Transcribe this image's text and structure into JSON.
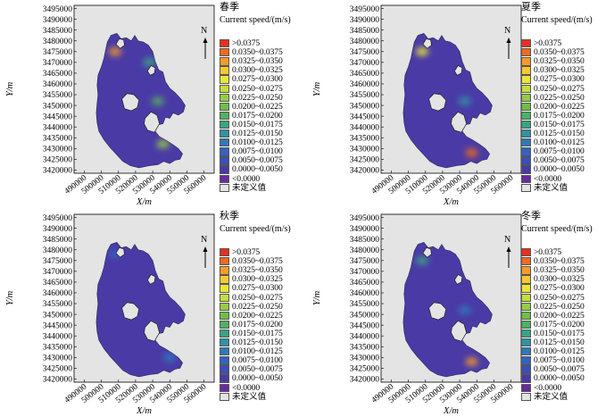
{
  "legend": {
    "title": "Current speed/(m/s)",
    "entries": [
      {
        "label": ">0.0375",
        "color": "#e8301e"
      },
      {
        "label": "0.0350~0.0375",
        "color": "#f06a22"
      },
      {
        "label": "0.0325~0.0350",
        "color": "#f59b2a"
      },
      {
        "label": "0.0300~0.0325",
        "color": "#f7c832"
      },
      {
        "label": "0.0275~0.0300",
        "color": "#e9e63a"
      },
      {
        "label": "0.0250~0.0275",
        "color": "#c4de3c"
      },
      {
        "label": "0.0225~0.0250",
        "color": "#96cc42"
      },
      {
        "label": "0.0200~0.0225",
        "color": "#6ebe48"
      },
      {
        "label": "0.0175~0.0200",
        "color": "#4fb15f"
      },
      {
        "label": "0.0150~0.0175",
        "color": "#3aa482"
      },
      {
        "label": "0.0125~0.0150",
        "color": "#2f93a3"
      },
      {
        "label": "0.0100~0.0125",
        "color": "#2f79ba"
      },
      {
        "label": "0.0075~0.0100",
        "color": "#3463bf"
      },
      {
        "label": "0.0050~0.0075",
        "color": "#3b4fb5"
      },
      {
        "label": "0.0000~0.0050",
        "color": "#4a3aa6"
      },
      {
        "label": "<0.0000",
        "color": "#6a2aa0"
      },
      {
        "label": "未定义值",
        "color": "#e4e4e4"
      }
    ]
  },
  "axes": {
    "ylabel": "Y/m",
    "xlabel": "X/m",
    "yticks": [
      "3495000",
      "3490000",
      "3485000",
      "3480000",
      "3475000",
      "3470000",
      "3465000",
      "3460000",
      "3455000",
      "3450000",
      "3445000",
      "3440000",
      "3435000",
      "3430000",
      "3425000",
      "3420000"
    ],
    "xticks": [
      "490000",
      "500000",
      "510000",
      "520000",
      "530000",
      "540000",
      "550000",
      "560000"
    ]
  },
  "north_label": "N",
  "colors": {
    "water": "#4a3aa6",
    "water_mid": "#3b4fb5",
    "land": "#e4e4e4"
  },
  "panels": [
    {
      "id": "spring",
      "season": "春季",
      "hotspots": [
        {
          "x": 533000,
          "y": 3452000,
          "speed": 0.016
        },
        {
          "x": 508000,
          "y": 3475000,
          "speed": 0.03
        },
        {
          "x": 528000,
          "y": 3470000,
          "speed": 0.013
        },
        {
          "x": 536000,
          "y": 3432000,
          "speed": 0.02
        }
      ]
    },
    {
      "id": "summer",
      "season": "夏季",
      "hotspots": [
        {
          "x": 533000,
          "y": 3452000,
          "speed": 0.012
        },
        {
          "x": 508000,
          "y": 3475000,
          "speed": 0.025
        },
        {
          "x": 537000,
          "y": 3428000,
          "speed": 0.0375
        }
      ]
    },
    {
      "id": "autumn",
      "season": "秋季",
      "hotspots": [
        {
          "x": 508000,
          "y": 3478000,
          "speed": 0.006
        },
        {
          "x": 540000,
          "y": 3430000,
          "speed": 0.008
        }
      ]
    },
    {
      "id": "winter",
      "season": "冬季",
      "hotspots": [
        {
          "x": 533000,
          "y": 3452000,
          "speed": 0.009
        },
        {
          "x": 508000,
          "y": 3475000,
          "speed": 0.013
        },
        {
          "x": 537000,
          "y": 3428000,
          "speed": 0.03
        }
      ]
    }
  ]
}
